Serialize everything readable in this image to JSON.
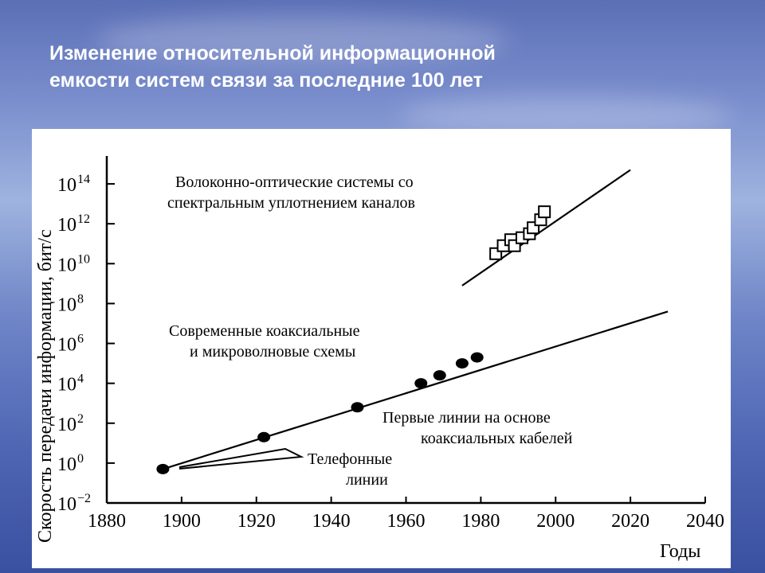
{
  "slide": {
    "title_line1": "Изменение относительной информационной",
    "title_line2": "емкости систем связи за последние 100 лет"
  },
  "chart_data": {
    "type": "scatter",
    "xlabel": "Годы",
    "ylabel": "Скорость передачи информации, бит/с",
    "xlim": [
      1880,
      2040
    ],
    "ylim_log10": [
      -2,
      15
    ],
    "y_scale": "log",
    "x_ticks": [
      1880,
      1900,
      1920,
      1940,
      1960,
      1980,
      2000,
      2020,
      2040
    ],
    "y_ticks": [
      {
        "base": "10",
        "exp": "−2",
        "log": -2
      },
      {
        "base": "10",
        "exp": "0",
        "log": 0
      },
      {
        "base": "10",
        "exp": "2",
        "log": 2
      },
      {
        "base": "10",
        "exp": "4",
        "log": 4
      },
      {
        "base": "10",
        "exp": "6",
        "log": 6
      },
      {
        "base": "10",
        "exp": "8",
        "log": 8
      },
      {
        "base": "10",
        "exp": "10",
        "log": 10
      },
      {
        "base": "10",
        "exp": "12",
        "log": 12
      },
      {
        "base": "10",
        "exp": "14",
        "log": 14
      }
    ],
    "series": [
      {
        "marker": "circle",
        "points": [
          {
            "x": 1895,
            "log10_y": -0.3
          },
          {
            "x": 1922,
            "log10_y": 1.3
          },
          {
            "x": 1947,
            "log10_y": 2.8
          },
          {
            "x": 1964,
            "log10_y": 4.0
          },
          {
            "x": 1969,
            "log10_y": 4.4
          },
          {
            "x": 1975,
            "log10_y": 5.0
          },
          {
            "x": 1979,
            "log10_y": 5.3
          }
        ],
        "trend": [
          {
            "x": 1895,
            "log10_y": -0.3
          },
          {
            "x": 2030,
            "log10_y": 7.6
          }
        ]
      },
      {
        "marker": "square",
        "points": [
          {
            "x": 1984,
            "log10_y": 10.5
          },
          {
            "x": 1986,
            "log10_y": 10.9
          },
          {
            "x": 1988,
            "log10_y": 11.2
          },
          {
            "x": 1989,
            "log10_y": 10.9
          },
          {
            "x": 1991,
            "log10_y": 11.3
          },
          {
            "x": 1993,
            "log10_y": 11.5
          },
          {
            "x": 1994,
            "log10_y": 11.8
          },
          {
            "x": 1996,
            "log10_y": 12.2
          },
          {
            "x": 1997,
            "log10_y": 12.6
          }
        ],
        "trend": [
          {
            "x": 1975,
            "log10_y": 8.9
          },
          {
            "x": 2020,
            "log10_y": 14.7
          }
        ]
      }
    ],
    "annotations": {
      "fiber_line1": "Волоконно-оптические системы со",
      "fiber_line2": "спектральным уплотнением каналов",
      "coax_micro_line1": "Современные коаксиальные",
      "coax_micro_line2": "и микроволновые схемы",
      "first_coax_line1": "Первые линии на основе",
      "first_coax_line2": "коаксиальных кабелей",
      "telephone_line1": "Телефонные",
      "telephone_line2": "линии"
    }
  }
}
